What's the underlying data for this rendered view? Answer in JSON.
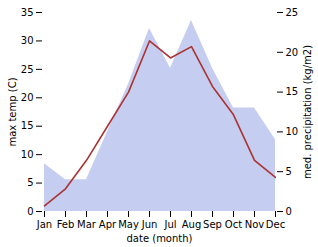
{
  "chart_data": {
    "type": "line",
    "categories": [
      "Jan",
      "Feb",
      "Mar",
      "Apr",
      "May",
      "Jun",
      "Jul",
      "Aug",
      "Sep",
      "Oct",
      "Nov",
      "Dec"
    ],
    "series": [
      {
        "type": "area",
        "axis": "y2",
        "color": "#c5cef0",
        "values": [
          6,
          4,
          4,
          10,
          16,
          23,
          18,
          24,
          18,
          13,
          13,
          9
        ]
      },
      {
        "type": "line",
        "color": "#aa3333",
        "values": [
          1,
          4,
          9,
          15,
          21,
          30,
          27,
          29,
          22,
          17,
          9,
          6
        ]
      }
    ],
    "xlabel": "date (month)",
    "ylabel": "max temp (C)",
    "y2label": "med. precipitation (kg/m2)",
    "ylim": [
      0,
      35
    ],
    "yticks": [
      0,
      5,
      10,
      15,
      20,
      25,
      30,
      35
    ],
    "y2lim": [
      0,
      25
    ],
    "y2ticks": [
      0,
      5,
      10,
      15,
      20,
      25
    ],
    "grid": false
  }
}
